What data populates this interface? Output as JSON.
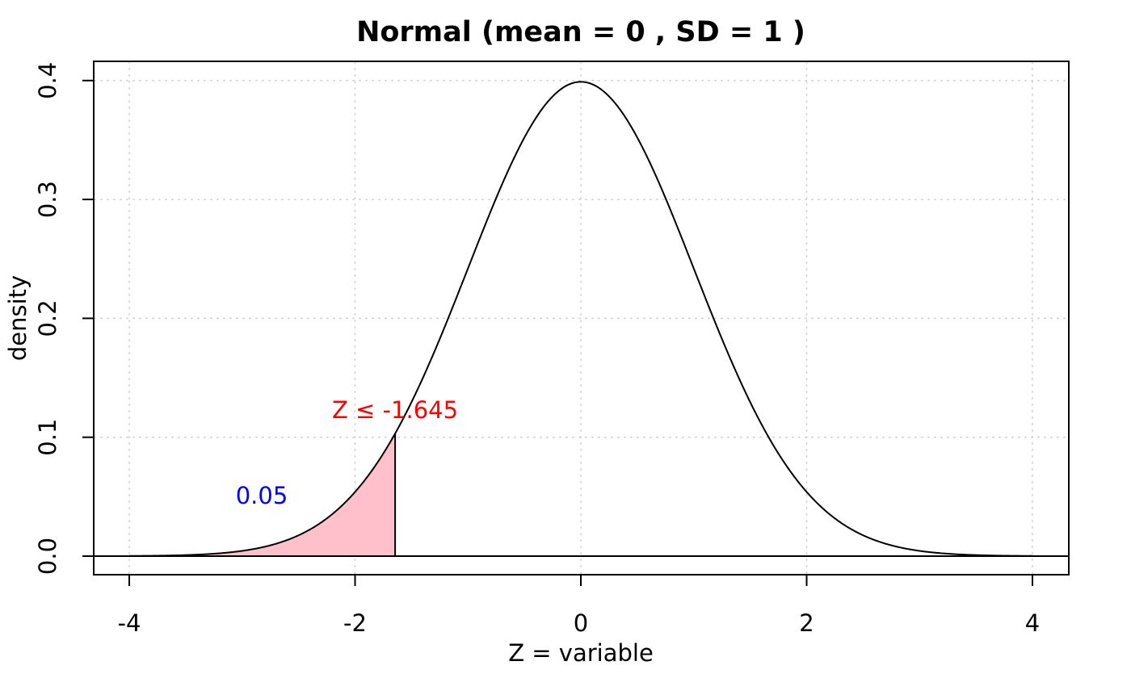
{
  "chart_data": {
    "type": "area",
    "title": "Normal (mean = 0 , SD =  1 )",
    "xlabel": "Z  = variable",
    "ylabel": "density",
    "distribution": {
      "name": "Normal",
      "mean": 0,
      "sd": 1
    },
    "xlim": [
      -4,
      4
    ],
    "ylim": [
      0,
      0.4
    ],
    "x_ticks": [
      -4,
      -2,
      0,
      2,
      4
    ],
    "x_tick_labels": [
      "-4",
      "-2",
      "0",
      "2",
      "4"
    ],
    "y_ticks": [
      0,
      0.1,
      0.2,
      0.3,
      0.4
    ],
    "y_tick_labels": [
      "0.0",
      "0.1",
      "0.2",
      "0.3",
      "0.4"
    ],
    "grid": true,
    "shaded_region": {
      "from": -4,
      "to": -1.645,
      "probability": 0.05,
      "color": "#ffc0cb"
    },
    "series": [
      {
        "x": [
          -4,
          -3.5,
          -3,
          -2.5,
          -2,
          -1.645,
          -1.5,
          -1,
          -0.5,
          0,
          0.5,
          1,
          1.5,
          2,
          2.5,
          3,
          3.5,
          4
        ],
        "values": [
          0.0001,
          0.0009,
          0.0044,
          0.0175,
          0.054,
          0.1031,
          0.1295,
          0.242,
          0.3521,
          0.3989,
          0.3521,
          0.242,
          0.1295,
          0.054,
          0.0175,
          0.0044,
          0.0009,
          0.0001
        ]
      }
    ],
    "annotations": [
      {
        "text": "Z  ≤  -1.645",
        "x": -1.645,
        "y": 0.12,
        "color": "#ff0000"
      },
      {
        "text": "0.05",
        "x": -2.8,
        "y": 0.05,
        "color": "#0000ff"
      }
    ],
    "colors": {
      "curve": "#000000",
      "grid": "#d3d3d3",
      "box": "#000000"
    }
  }
}
